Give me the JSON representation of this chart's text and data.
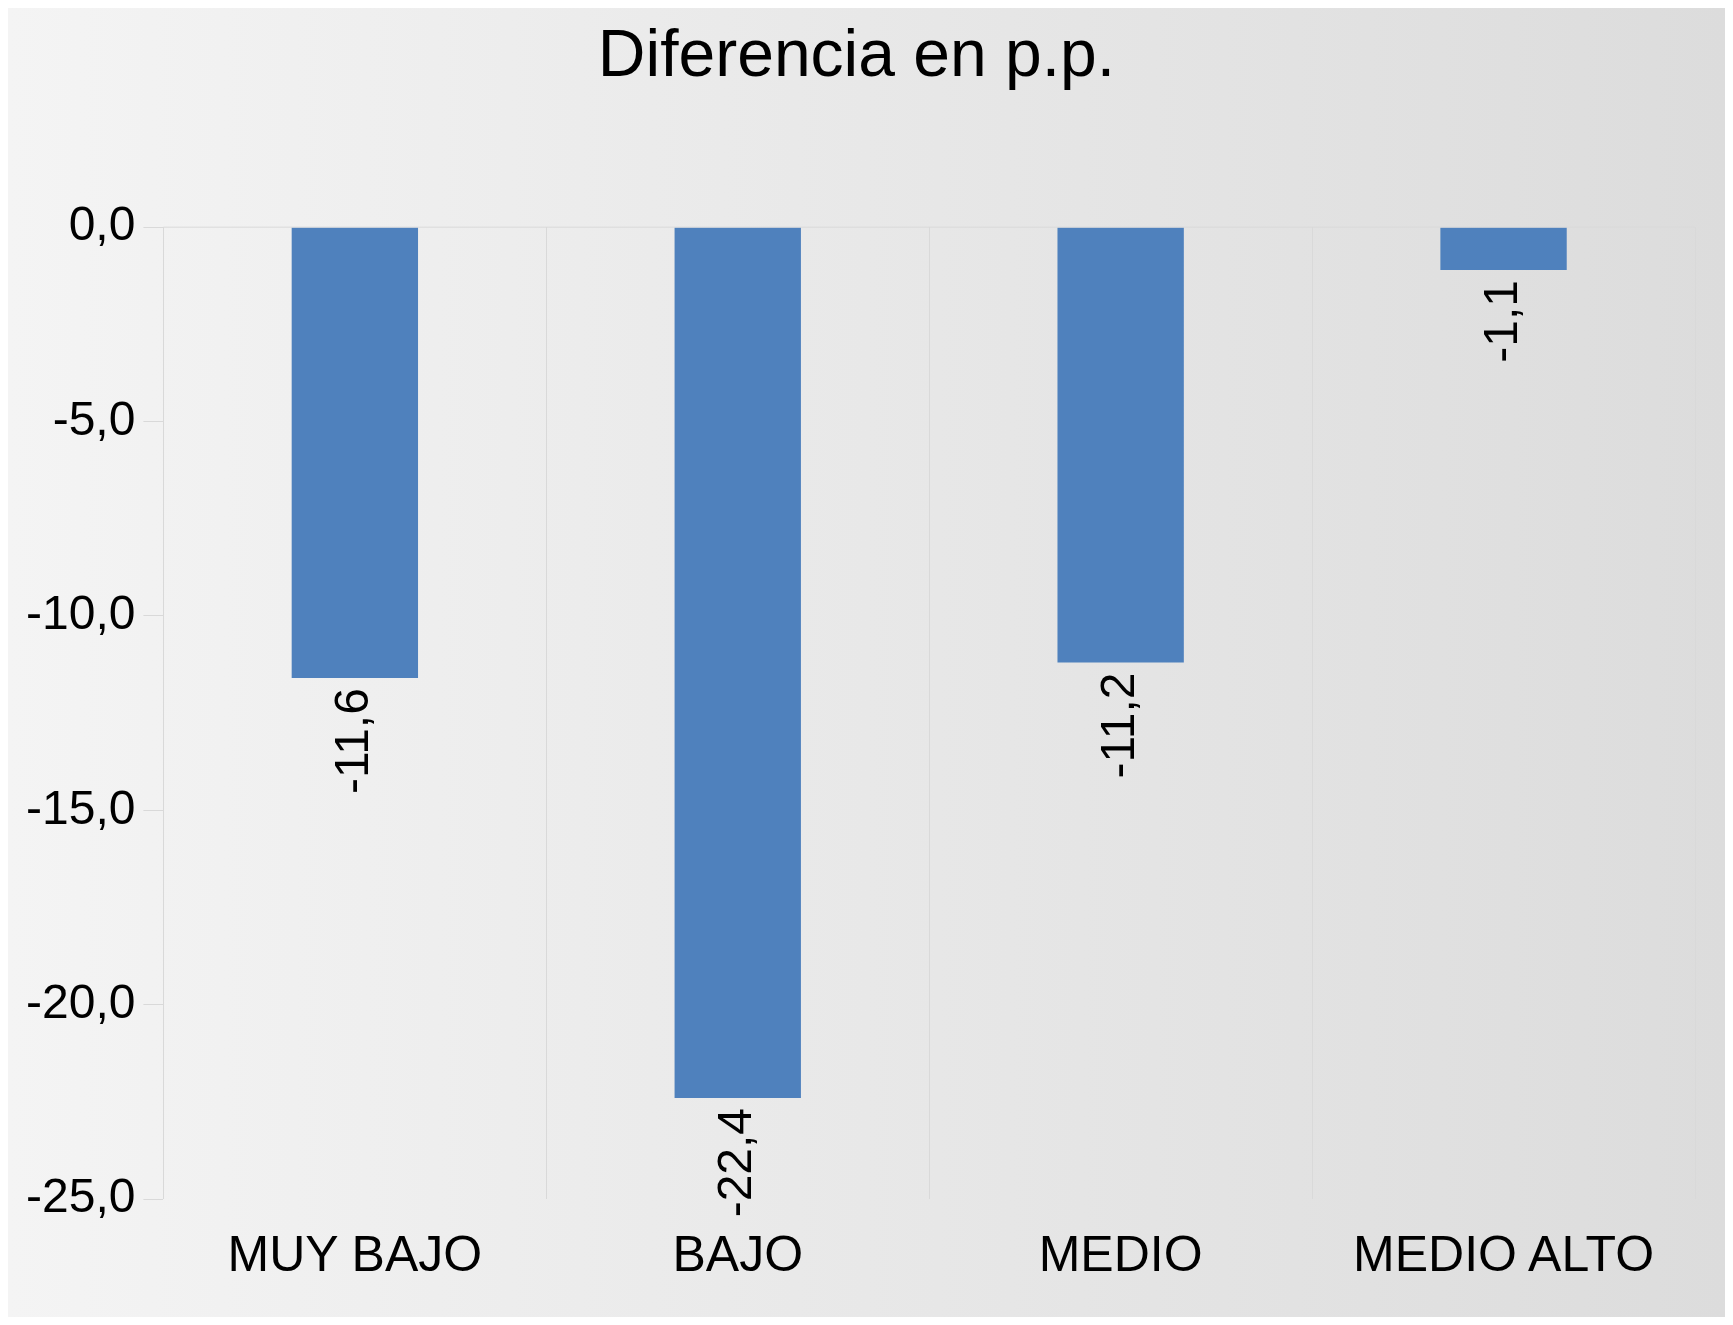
{
  "chart_data": {
    "type": "bar",
    "title": "Diferencia en p.p.",
    "categories": [
      "MUY BAJO",
      "BAJO",
      "MEDIO",
      "MEDIO ALTO"
    ],
    "values": [
      -11.6,
      -22.4,
      -11.2,
      -1.1
    ],
    "color": "#4f81bd",
    "value_labels": [
      "-11,6",
      "-22,4",
      "-11,2",
      "-1,1"
    ],
    "ylim": [
      -25,
      0
    ],
    "yticks": [
      {
        "value": 0,
        "label": "0,0"
      },
      {
        "value": -5,
        "label": "-5,0"
      },
      {
        "value": -10,
        "label": "-10,0"
      },
      {
        "value": -15,
        "label": "-15,0"
      },
      {
        "value": -20,
        "label": "-20,0"
      },
      {
        "value": -25,
        "label": "-25,0"
      }
    ],
    "grid": "x",
    "legend": false
  }
}
